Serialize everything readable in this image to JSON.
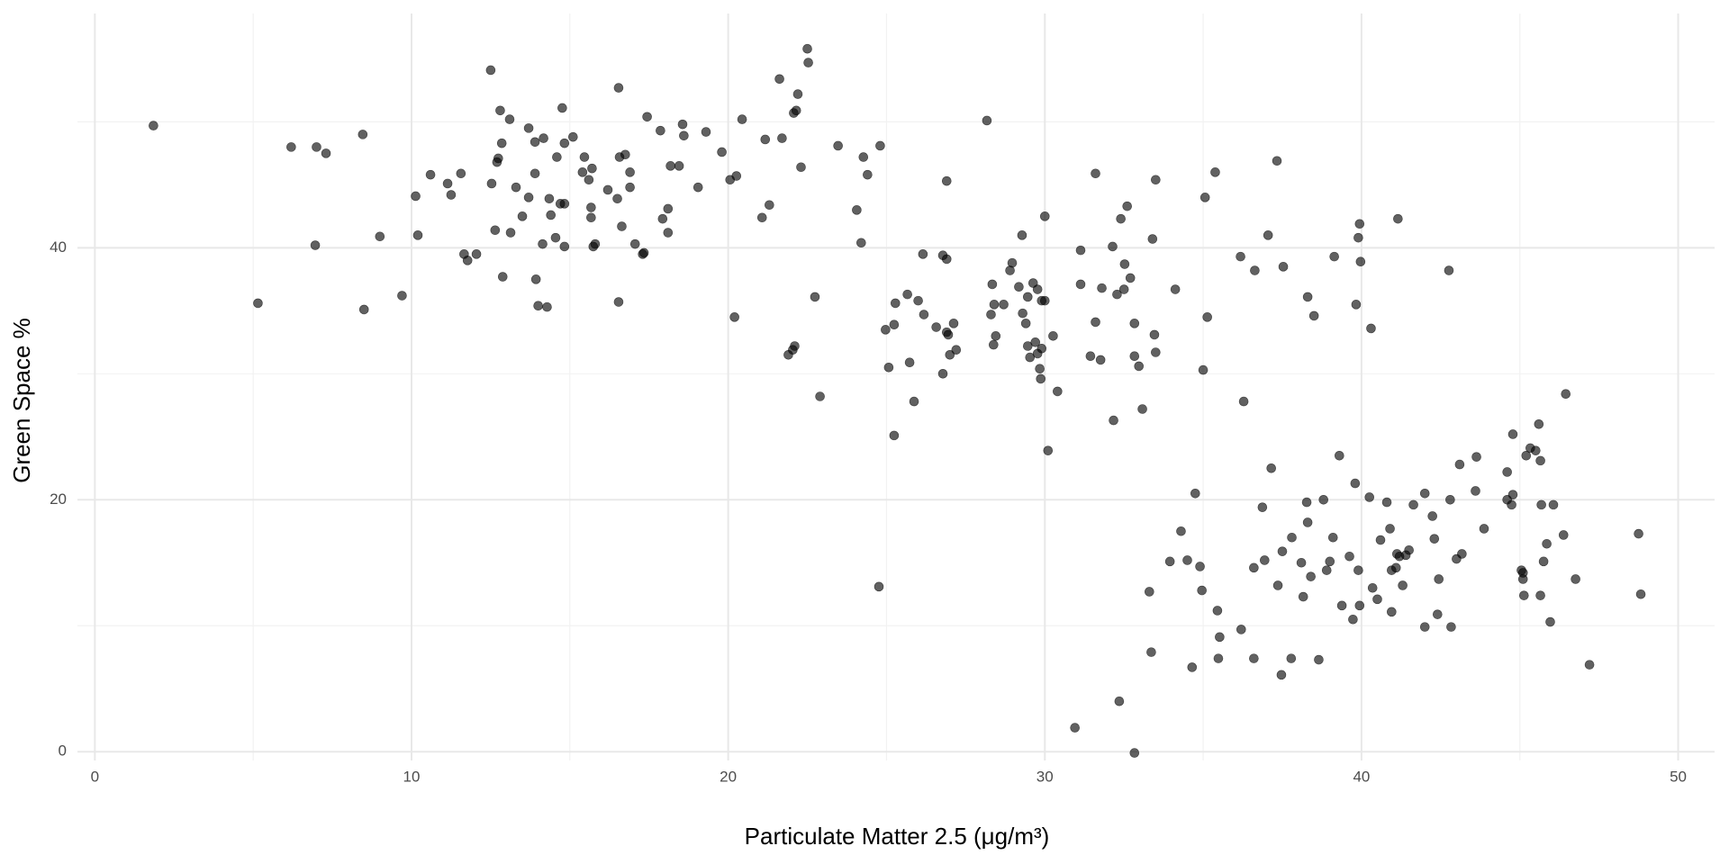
{
  "chart_data": {
    "type": "scatter",
    "x_label": "Particulate Matter 2.5 (μg/m³)",
    "y_label": "Green Space %",
    "color": "#000000",
    "opacity": 0.62,
    "grid": true,
    "xlim": [
      -0.55,
      51.15
    ],
    "ylim": [
      -0.7,
      58.6
    ],
    "xticks": [
      0,
      10,
      20,
      30,
      40,
      50
    ],
    "yticks": [
      0,
      20,
      40
    ],
    "xminor": [
      5,
      15,
      25,
      35,
      45
    ],
    "yminor": [
      10,
      30,
      50
    ],
    "x": [
      1.85,
      5.15,
      6.2,
      7.0,
      7.3,
      6.96,
      8.46,
      8.5,
      9.0,
      9.7,
      10.13,
      10.2,
      10.6,
      11.14,
      11.25,
      11.56,
      11.66,
      11.77,
      12.05,
      12.5,
      12.53,
      12.64,
      12.7,
      12.74,
      12.8,
      12.85,
      12.88,
      13.1,
      13.13,
      13.3,
      13.5,
      13.7,
      13.7,
      13.9,
      13.9,
      13.93,
      14.0,
      14.14,
      14.17,
      14.28,
      14.35,
      14.4,
      14.55,
      14.59,
      14.7,
      14.76,
      14.83,
      14.83,
      14.83,
      15.1,
      15.4,
      15.46,
      15.6,
      15.67,
      15.7,
      15.74,
      15.8,
      15.67,
      16.2,
      16.5,
      16.54,
      16.54,
      16.57,
      16.64,
      16.75,
      16.9,
      16.9,
      17.06,
      17.3,
      17.34,
      17.44,
      17.86,
      17.93,
      18.1,
      18.1,
      18.18,
      18.45,
      18.56,
      18.6,
      19.05,
      19.3,
      19.8,
      20.06,
      20.26,
      20.2,
      20.44,
      21.07,
      21.17,
      21.3,
      21.62,
      21.7,
      21.9,
      22.04,
      22.1,
      22.07,
      22.15,
      22.2,
      22.3,
      22.5,
      22.53,
      22.74,
      22.9,
      23.47,
      24.06,
      24.2,
      24.27,
      24.4,
      24.8,
      24.76,
      24.97,
      25.07,
      25.24,
      25.24,
      25.28,
      25.66,
      25.73,
      25.87,
      26.0,
      26.15,
      26.18,
      26.57,
      26.78,
      26.78,
      26.9,
      26.9,
      26.9,
      26.95,
      27.0,
      27.12,
      27.2,
      28.17,
      28.3,
      28.34,
      28.38,
      28.4,
      28.45,
      28.7,
      28.9,
      28.97,
      29.18,
      29.28,
      29.3,
      29.4,
      29.46,
      29.46,
      29.53,
      29.63,
      29.7,
      29.77,
      29.77,
      29.9,
      29.84,
      29.87,
      29.9,
      30.0,
      30.0,
      30.1,
      30.26,
      30.4,
      30.95,
      31.13,
      31.13,
      31.44,
      31.6,
      31.6,
      31.76,
      31.8,
      32.14,
      32.17,
      32.28,
      32.35,
      32.4,
      32.5,
      32.52,
      32.6,
      32.7,
      32.83,
      32.83,
      32.83,
      32.97,
      33.08,
      33.3,
      33.36,
      33.4,
      33.46,
      33.5,
      33.5,
      33.95,
      34.12,
      34.3,
      34.5,
      34.65,
      34.75,
      34.9,
      34.96,
      35.0,
      35.06,
      35.13,
      35.38,
      35.45,
      35.48,
      35.52,
      36.2,
      36.18,
      36.28,
      36.6,
      36.6,
      36.63,
      36.87,
      36.94,
      37.05,
      37.15,
      37.33,
      37.36,
      37.47,
      37.5,
      37.53,
      37.78,
      37.8,
      38.1,
      38.16,
      38.27,
      38.3,
      38.3,
      38.4,
      38.5,
      38.65,
      38.8,
      38.9,
      39.0,
      39.1,
      39.14,
      39.3,
      39.38,
      39.62,
      39.73,
      39.8,
      39.83,
      39.9,
      39.94,
      39.9,
      39.94,
      39.97,
      40.25,
      40.35,
      40.3,
      40.5,
      40.6,
      40.8,
      40.9,
      40.95,
      40.95,
      41.09,
      41.12,
      41.15,
      41.2,
      41.3,
      41.4,
      41.5,
      41.64,
      42.0,
      42.0,
      42.24,
      42.3,
      42.4,
      42.44,
      42.76,
      42.8,
      42.83,
      43.0,
      43.1,
      43.17,
      43.6,
      43.63,
      43.87,
      44.6,
      44.6,
      44.74,
      44.78,
      44.78,
      45.05,
      45.1,
      45.1,
      45.13,
      45.2,
      45.33,
      45.5,
      45.6,
      45.65,
      45.65,
      45.68,
      45.75,
      45.85,
      45.96,
      46.06,
      46.38,
      46.45,
      46.76,
      47.2,
      48.75,
      48.82
    ],
    "values": [
      49.7,
      35.6,
      48.0,
      48.0,
      47.5,
      40.2,
      49.0,
      35.1,
      40.9,
      36.2,
      44.1,
      41.0,
      45.8,
      45.1,
      44.2,
      45.9,
      39.5,
      39.0,
      39.5,
      54.1,
      45.1,
      41.4,
      46.8,
      47.1,
      50.9,
      48.3,
      37.7,
      50.2,
      41.2,
      44.8,
      42.5,
      49.5,
      44.0,
      48.4,
      45.9,
      37.5,
      35.4,
      40.3,
      48.7,
      35.3,
      43.9,
      42.6,
      40.8,
      47.2,
      43.5,
      51.1,
      43.5,
      48.3,
      40.1,
      48.8,
      46.0,
      47.2,
      45.4,
      43.2,
      46.3,
      40.1,
      40.3,
      42.4,
      44.6,
      43.9,
      52.7,
      35.7,
      47.2,
      41.7,
      47.4,
      46.0,
      44.8,
      40.3,
      39.5,
      39.6,
      50.4,
      49.3,
      42.3,
      43.1,
      41.2,
      46.5,
      46.5,
      49.8,
      48.9,
      44.8,
      49.2,
      47.6,
      45.4,
      45.7,
      34.5,
      50.2,
      42.4,
      48.6,
      43.4,
      53.4,
      48.7,
      31.5,
      31.9,
      32.2,
      50.7,
      50.9,
      52.2,
      46.4,
      55.8,
      54.7,
      36.1,
      28.2,
      48.1,
      43.0,
      40.4,
      47.2,
      45.8,
      48.1,
      13.1,
      33.5,
      30.5,
      33.9,
      25.1,
      35.6,
      36.3,
      30.9,
      27.8,
      35.8,
      39.5,
      34.7,
      33.7,
      30.0,
      39.4,
      45.3,
      39.1,
      33.3,
      33.1,
      31.5,
      34.0,
      31.9,
      50.1,
      34.7,
      37.1,
      32.3,
      35.5,
      33.0,
      35.5,
      38.2,
      38.8,
      36.9,
      41.0,
      34.8,
      34.0,
      36.1,
      32.2,
      31.3,
      37.2,
      32.5,
      36.7,
      31.6,
      32.0,
      30.4,
      29.6,
      35.8,
      35.8,
      42.5,
      23.9,
      33.0,
      28.6,
      1.9,
      39.8,
      37.1,
      31.4,
      34.1,
      45.9,
      31.1,
      36.8,
      40.1,
      26.3,
      36.3,
      4.0,
      42.3,
      36.7,
      38.7,
      43.3,
      37.6,
      -0.1,
      34.0,
      31.4,
      30.6,
      27.2,
      12.7,
      7.9,
      40.7,
      33.1,
      31.7,
      45.4,
      15.1,
      36.7,
      17.5,
      15.2,
      6.7,
      20.5,
      14.7,
      12.8,
      30.3,
      44.0,
      34.5,
      46.0,
      11.2,
      7.4,
      9.1,
      9.7,
      39.3,
      27.8,
      14.6,
      7.4,
      38.2,
      19.4,
      15.2,
      41.0,
      22.5,
      46.9,
      13.2,
      6.1,
      15.9,
      38.5,
      7.4,
      17.0,
      15.0,
      12.3,
      19.8,
      36.1,
      18.2,
      13.9,
      34.6,
      7.3,
      20.0,
      14.4,
      15.1,
      17.0,
      39.3,
      23.5,
      11.6,
      15.5,
      10.5,
      21.3,
      35.5,
      14.4,
      11.6,
      40.8,
      41.9,
      38.9,
      20.2,
      13.0,
      33.6,
      12.1,
      16.8,
      19.8,
      17.7,
      14.4,
      11.1,
      14.6,
      15.7,
      42.3,
      15.5,
      13.2,
      15.6,
      16.0,
      19.6,
      20.5,
      9.9,
      18.7,
      16.9,
      10.9,
      13.7,
      38.2,
      20.0,
      9.9,
      15.3,
      22.8,
      15.7,
      20.7,
      23.4,
      17.7,
      20.0,
      22.2,
      19.6,
      20.4,
      25.2,
      14.4,
      14.2,
      13.7,
      12.4,
      23.5,
      24.1,
      23.9,
      26.0,
      23.1,
      12.4,
      19.6,
      15.1,
      16.5,
      10.3,
      19.6,
      17.2,
      28.4,
      13.7,
      6.9,
      17.3,
      12.5
    ]
  }
}
